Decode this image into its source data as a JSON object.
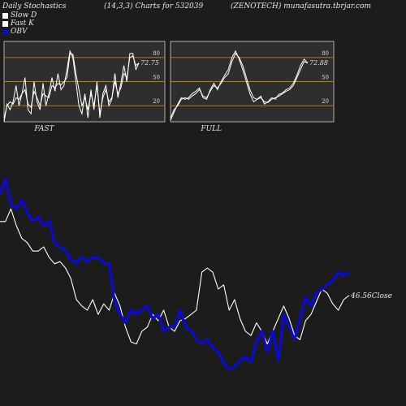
{
  "header": {
    "left": "Daily Stochastics",
    "center": "(14,3,3) Charts for 532039",
    "right": "(ZENOTECH) munafasutra.tbrjar.com"
  },
  "legend": [
    {
      "label": "Slow  D",
      "color": "#ffffff"
    },
    {
      "label": "Fast K",
      "color": "#ffffff"
    },
    {
      "label": "OBV",
      "color": "#0a0ad4"
    }
  ],
  "colors": {
    "background": "#1c1c1c",
    "panel": "#2e2e2e",
    "level_line": "#b8860b",
    "price_line": "#ffffff",
    "obv_line": "#0a0ad4"
  },
  "chart_data": [
    {
      "type": "line",
      "title": "FAST",
      "ylim": [
        0,
        100
      ],
      "y_ticks": [
        20,
        50,
        80
      ],
      "levels": [
        20,
        50,
        80
      ],
      "last_value_label": "72.75",
      "series": [
        {
          "values": [
            5,
            20,
            25,
            22,
            30,
            28,
            35,
            40,
            22,
            18,
            38,
            30,
            20,
            35,
            32,
            30,
            45,
            42,
            48,
            46,
            50,
            55,
            85,
            84,
            60,
            40,
            20,
            30,
            15,
            35,
            20,
            45,
            10,
            30,
            40,
            25,
            30,
            50,
            35,
            42,
            60,
            55,
            80,
            82,
            70,
            73
          ]
        },
        {
          "values": [
            0,
            22,
            15,
            25,
            45,
            20,
            35,
            55,
            15,
            10,
            50,
            25,
            15,
            48,
            20,
            35,
            55,
            38,
            60,
            40,
            45,
            65,
            88,
            80,
            50,
            20,
            10,
            35,
            5,
            40,
            15,
            50,
            5,
            35,
            45,
            20,
            28,
            60,
            30,
            48,
            70,
            50,
            85,
            85,
            65,
            72.75
          ]
        }
      ]
    },
    {
      "type": "line",
      "title": "FULL",
      "ylim": [
        0,
        100
      ],
      "y_ticks": [
        20,
        50,
        80
      ],
      "levels": [
        20,
        50,
        80
      ],
      "last_value_label": "72.88",
      "series": [
        {
          "values": [
            5,
            15,
            20,
            28,
            30,
            28,
            32,
            35,
            40,
            32,
            30,
            38,
            45,
            42,
            48,
            55,
            60,
            75,
            85,
            80,
            70,
            55,
            40,
            30,
            28,
            30,
            25,
            24,
            28,
            30,
            32,
            35,
            38,
            40,
            45,
            55,
            65,
            75,
            73
          ]
        },
        {
          "values": [
            2,
            12,
            22,
            30,
            28,
            30,
            35,
            38,
            42,
            30,
            28,
            40,
            48,
            40,
            50,
            58,
            65,
            80,
            88,
            78,
            65,
            50,
            35,
            25,
            28,
            32,
            22,
            25,
            30,
            28,
            34,
            36,
            40,
            42,
            48,
            58,
            70,
            78,
            72.88
          ]
        }
      ]
    },
    {
      "type": "line",
      "ylim": [
        0,
        100
      ],
      "last_value_label": "46.56Close",
      "series": [
        {
          "values": [
            72,
            72,
            78,
            70,
            64,
            62,
            58,
            58,
            60,
            55,
            52,
            53,
            50,
            45,
            35,
            32,
            30,
            35,
            28,
            33,
            30,
            38,
            32,
            22,
            15,
            14,
            20,
            22,
            28,
            25,
            30,
            22,
            20,
            25,
            26,
            28,
            30,
            48,
            50,
            48,
            40,
            42,
            30,
            35,
            26,
            20,
            18,
            24,
            20,
            14,
            20,
            26,
            32,
            26,
            18,
            16,
            25,
            28,
            34,
            40,
            38,
            33,
            30,
            35,
            37
          ]
        },
        {
          "values": [
            85,
            92,
            80,
            78,
            82,
            76,
            72,
            74,
            70,
            72,
            62,
            60,
            58,
            54,
            52,
            55,
            53,
            55,
            55,
            52,
            52,
            34,
            28,
            24,
            30,
            28,
            30,
            32,
            26,
            28,
            20,
            22,
            22,
            30,
            22,
            20,
            16,
            14,
            16,
            12,
            10,
            5,
            2,
            3,
            6,
            8,
            5,
            15,
            20,
            10,
            20,
            6,
            28,
            22,
            16,
            26,
            36,
            32,
            38,
            40,
            42,
            44,
            48,
            46,
            48
          ]
        }
      ]
    }
  ]
}
